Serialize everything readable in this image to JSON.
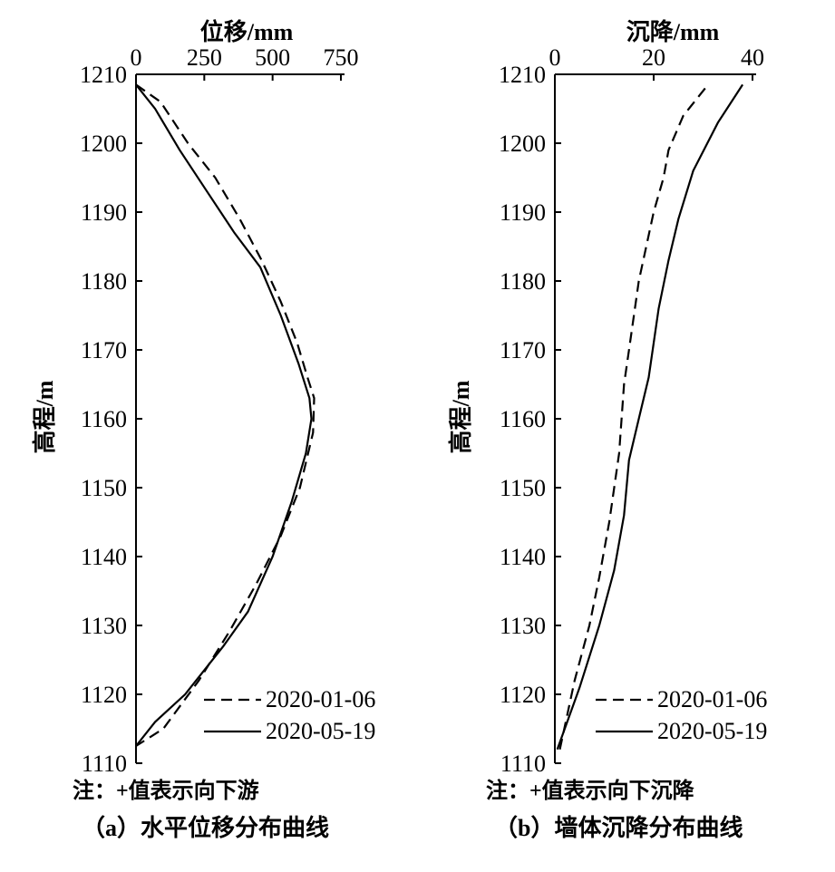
{
  "chart_data": [
    {
      "type": "line",
      "xlabel": "位移/mm",
      "ylabel": "高程/m",
      "xlim": [
        0,
        750
      ],
      "ylim": [
        1110,
        1210
      ],
      "xticks": [
        "0",
        "250",
        "500",
        "750"
      ],
      "yticks": [
        "1110",
        "1120",
        "1130",
        "1140",
        "1150",
        "1160",
        "1170",
        "1180",
        "1190",
        "1200",
        "1210"
      ],
      "legend_position": "bottom-right",
      "series": [
        {
          "name": "2020-01-06",
          "style": "dashed",
          "x": [
            0,
            90,
            190,
            290,
            380,
            460,
            530,
            590,
            628,
            652,
            648,
            600,
            530,
            440,
            340,
            230,
            100,
            0
          ],
          "y": [
            1208.5,
            1206,
            1200,
            1195,
            1189,
            1183,
            1177,
            1171,
            1166,
            1163,
            1158,
            1150,
            1143,
            1136,
            1129,
            1122,
            1115,
            1112.5
          ]
        },
        {
          "name": "2020-05-19",
          "style": "solid",
          "x": [
            0,
            70,
            160,
            260,
            360,
            455,
            530,
            595,
            635,
            642,
            622,
            570,
            500,
            410,
            320,
            180,
            70,
            0
          ],
          "y": [
            1208.5,
            1205,
            1199,
            1193,
            1187,
            1182,
            1175,
            1168,
            1163,
            1160,
            1155,
            1148,
            1140,
            1132,
            1127,
            1120,
            1116,
            1112.5
          ]
        }
      ],
      "note": "注：+值表示向下游",
      "caption": "（a）水平位移分布曲线"
    },
    {
      "type": "line",
      "xlabel": "沉降/mm",
      "ylabel": "高程/m",
      "xlim": [
        0,
        45
      ],
      "ylim": [
        1110,
        1210
      ],
      "xticks": [
        "0",
        "20",
        "40"
      ],
      "yticks": [
        "1110",
        "1120",
        "1130",
        "1140",
        "1150",
        "1160",
        "1170",
        "1180",
        "1190",
        "1200",
        "1210"
      ],
      "legend_position": "bottom-right",
      "series": [
        {
          "name": "2020-01-06",
          "style": "dashed",
          "x": [
            1,
            4,
            7,
            9,
            11,
            13,
            14,
            15,
            16,
            17,
            20,
            22,
            23,
            26,
            31
          ],
          "y": [
            1112,
            1122,
            1130,
            1137,
            1145,
            1155,
            1165,
            1170,
            1175,
            1180,
            1190,
            1195,
            1199,
            1204,
            1208.5
          ]
        },
        {
          "name": "2020-05-19",
          "style": "solid",
          "x": [
            0.5,
            5,
            9,
            12,
            14,
            15,
            17,
            19,
            20,
            21,
            23,
            25,
            28,
            33,
            38
          ],
          "y": [
            1112,
            1121,
            1130,
            1138,
            1146,
            1154,
            1160,
            1166,
            1171,
            1176,
            1183,
            1189,
            1196,
            1203,
            1208.5
          ]
        }
      ],
      "note": "注：+值表示向下沉降",
      "caption": "（b）墙体沉降分布曲线"
    }
  ]
}
